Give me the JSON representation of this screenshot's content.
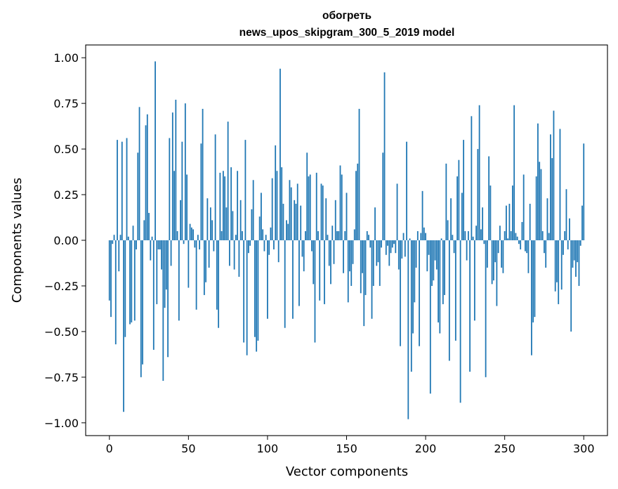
{
  "chart_data": {
    "type": "bar",
    "title_line1": "обогреть",
    "title_line2": "news_upos_skipgram_300_5_2019 model",
    "xlabel": "Vector components",
    "ylabel": "Components values",
    "xlim": [
      -15,
      315
    ],
    "ylim": [
      -1.07,
      1.07
    ],
    "xticks": [
      0,
      50,
      100,
      150,
      200,
      250,
      300
    ],
    "xtick_labels": [
      "0",
      "50",
      "100",
      "150",
      "200",
      "250",
      "300"
    ],
    "yticks": [
      1.0,
      0.75,
      0.5,
      0.25,
      0.0,
      -0.25,
      -0.5,
      -0.75,
      -1.0
    ],
    "ytick_labels": [
      "1.00",
      "0.75",
      "0.50",
      "0.25",
      "0.00",
      "−0.25",
      "−0.50",
      "−0.75",
      "−1.00"
    ],
    "bar_color": "#1f77b4",
    "grid": false,
    "values": [
      -0.33,
      -0.42,
      -0.02,
      0.03,
      -0.57,
      0.55,
      -0.17,
      0.03,
      0.54,
      -0.94,
      -0.53,
      0.56,
      0.02,
      -0.46,
      -0.45,
      0.08,
      -0.44,
      -0.05,
      0.48,
      0.73,
      -0.75,
      -0.68,
      0.11,
      0.63,
      0.69,
      0.15,
      -0.11,
      0.02,
      -0.6,
      0.98,
      -0.35,
      -0.05,
      -0.05,
      -0.16,
      -0.77,
      -0.37,
      -0.27,
      -0.64,
      0.56,
      -0.14,
      0.7,
      0.38,
      0.77,
      0.05,
      -0.44,
      0.22,
      0.54,
      -0.02,
      0.75,
      0.36,
      -0.26,
      0.09,
      0.07,
      0.06,
      -0.04,
      -0.38,
      0.03,
      -0.05,
      0.53,
      0.72,
      -0.3,
      -0.23,
      0.23,
      -0.15,
      0.18,
      0.11,
      -0.06,
      0.58,
      -0.38,
      -0.48,
      0.37,
      0.05,
      0.38,
      0.35,
      0.18,
      0.65,
      -0.14,
      0.4,
      0.16,
      -0.16,
      0.03,
      0.38,
      -0.2,
      0.22,
      0.05,
      -0.56,
      0.55,
      -0.63,
      -0.07,
      -0.03,
      0.17,
      0.33,
      -0.53,
      -0.61,
      -0.55,
      0.13,
      0.26,
      0.06,
      -0.06,
      0.03,
      -0.43,
      -0.08,
      0.07,
      0.34,
      -0.05,
      0.52,
      0.38,
      -0.12,
      0.94,
      0.4,
      0.2,
      -0.48,
      0.11,
      0.09,
      0.33,
      0.29,
      -0.43,
      0.22,
      0.2,
      0.31,
      -0.36,
      0.19,
      -0.09,
      -0.17,
      0.05,
      0.48,
      0.35,
      0.36,
      -0.06,
      -0.24,
      -0.56,
      0.37,
      0.05,
      -0.33,
      0.31,
      0.3,
      -0.35,
      0.23,
      0.03,
      -0.14,
      -0.24,
      0.08,
      -0.13,
      0.22,
      0.05,
      0.05,
      0.41,
      0.36,
      -0.18,
      0.05,
      0.26,
      -0.34,
      -0.17,
      -0.25,
      -0.13,
      0.06,
      0.38,
      0.42,
      0.72,
      -0.29,
      -0.18,
      -0.47,
      -0.3,
      0.05,
      0.03,
      -0.04,
      -0.43,
      -0.25,
      0.18,
      -0.14,
      -0.12,
      -0.25,
      -0.04,
      0.48,
      0.92,
      -0.08,
      -0.03,
      -0.14,
      -0.07,
      -0.04,
      -0.02,
      -0.07,
      0.31,
      -0.16,
      -0.58,
      -0.1,
      0.04,
      -0.09,
      0.54,
      -0.98,
      0.01,
      -0.72,
      -0.51,
      -0.34,
      -0.15,
      0.05,
      -0.58,
      0.04,
      0.27,
      0.07,
      0.04,
      -0.17,
      -0.08,
      -0.84,
      -0.25,
      -0.22,
      -0.11,
      -0.16,
      -0.45,
      -0.51,
      0.01,
      -0.35,
      -0.3,
      0.42,
      0.11,
      -0.66,
      0.23,
      0.03,
      -0.07,
      -0.55,
      0.35,
      0.44,
      -0.89,
      0.26,
      0.55,
      0.05,
      -0.11,
      0.05,
      -0.72,
      0.68,
      0.02,
      -0.44,
      0.08,
      0.5,
      0.74,
      0.06,
      0.18,
      -0.02,
      -0.75,
      -0.15,
      0.46,
      0.3,
      -0.24,
      -0.22,
      -0.12,
      -0.36,
      -0.07,
      0.08,
      -0.15,
      -0.18,
      0.05,
      0.19,
      0.01,
      0.2,
      0.05,
      0.3,
      0.74,
      0.04,
      0.02,
      -0.02,
      -0.05,
      0.1,
      0.36,
      -0.06,
      -0.07,
      -0.18,
      0.2,
      -0.63,
      -0.45,
      -0.42,
      0.35,
      0.64,
      0.43,
      0.39,
      0.05,
      -0.07,
      -0.15,
      0.23,
      0.04,
      0.58,
      0.45,
      0.71,
      -0.28,
      -0.23,
      -0.35,
      0.61,
      -0.27,
      -0.08,
      0.05,
      0.28,
      -0.05,
      0.12,
      -0.5,
      -0.15,
      -0.11,
      -0.2,
      -0.12,
      -0.25,
      -0.03,
      0.19,
      0.53
    ]
  }
}
